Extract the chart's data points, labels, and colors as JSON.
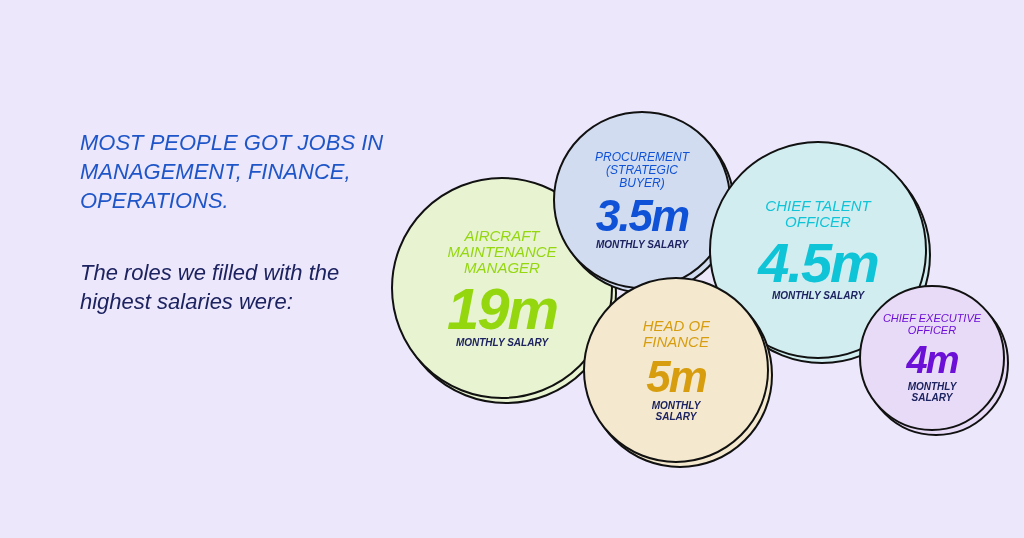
{
  "chart_data": {
    "type": "other",
    "title": "MOST PEOPLE GOT JOBS IN MANAGEMENT, FINANCE, OPERATIONS.",
    "subtitle": "The roles we filled with the highest salaries were:",
    "categories": [
      "AIRCRAFT MAINTENANCE MANAGER",
      "PROCUREMENT (STRATEGIC BUYER)",
      "CHIEF TALENT OFFICER",
      "HEAD OF FINANCE",
      "CHIEF EXECUTIVE OFFICER"
    ],
    "values": [
      19,
      3.5,
      4.5,
      5,
      4
    ],
    "value_labels": [
      "19m",
      "3.5m",
      "4.5m",
      "5m",
      "4m"
    ],
    "colors": [
      "#e8f3d2",
      "#d2dcf0",
      "#d1edf0",
      "#f4e9ce",
      "#e8dbf7"
    ],
    "annotations": [
      "MONTHLY SALARY",
      "MONTHLY SALARY",
      "MONTHLY SALARY",
      "MONTHLY SALARY",
      "MONTHLY SALARY"
    ]
  }
}
